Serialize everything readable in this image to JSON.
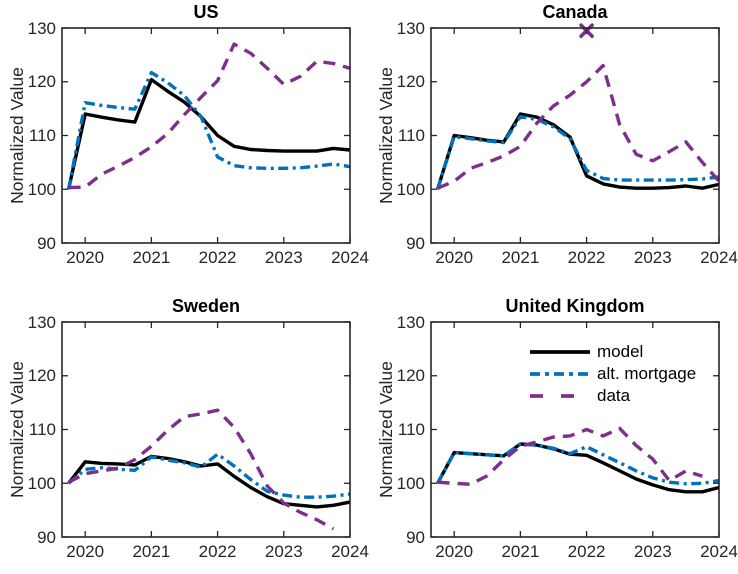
{
  "figure": {
    "background": "#ffffff",
    "axis_color": "#262626",
    "tick_label_color": "#262626",
    "title_color": "#000000"
  },
  "legend": {
    "location": "united-kingdom-subplot-top",
    "entries": [
      {
        "label": "model",
        "color": "#000000",
        "style": "solid"
      },
      {
        "label": "alt. mortgage",
        "color": "#0072BD",
        "style": "dashdot"
      },
      {
        "label": "data",
        "color": "#7E2F8E",
        "style": "dashed"
      }
    ]
  },
  "chart_data": [
    {
      "type": "line",
      "title": "US",
      "ylabel": "Normalized Value",
      "xlim": [
        2019.65,
        2024
      ],
      "ylim": [
        90,
        130
      ],
      "xticks": [
        2020,
        2021,
        2022,
        2023,
        2024
      ],
      "yticks": [
        90,
        100,
        110,
        120,
        130
      ],
      "grid": false,
      "x": [
        2019.75,
        2020,
        2020.25,
        2020.5,
        2020.75,
        2021,
        2021.25,
        2021.5,
        2021.75,
        2022,
        2022.25,
        2022.5,
        2022.75,
        2023,
        2023.25,
        2023.5,
        2023.75,
        2024
      ],
      "series": [
        {
          "name": "model",
          "color": "#000000",
          "style": "solid",
          "values": [
            100,
            114,
            113.4,
            112.9,
            112.5,
            120.4,
            118.2,
            116.2,
            113.5,
            110,
            108,
            107.4,
            107.2,
            107.1,
            107.1,
            107.1,
            107.6,
            107.3
          ]
        },
        {
          "name": "alt. mortgage",
          "color": "#0072BD",
          "style": "dashdot",
          "values": [
            100,
            116.1,
            115.6,
            115.2,
            114.9,
            121.7,
            119.8,
            117.4,
            113.5,
            106,
            104.4,
            104,
            103.9,
            103.9,
            104,
            104.3,
            104.7,
            104.2
          ]
        },
        {
          "name": "data",
          "color": "#7E2F8E",
          "style": "dashed",
          "values": [
            100.3,
            100.4,
            102.8,
            104.3,
            105.9,
            107.9,
            110.4,
            113.9,
            117.1,
            120.2,
            127,
            125.3,
            122.5,
            119.5,
            121,
            123.8,
            123.4,
            122.5
          ]
        }
      ],
      "markers": []
    },
    {
      "type": "line",
      "title": "Canada",
      "ylabel": "Normalized Value",
      "xlim": [
        2019.65,
        2024
      ],
      "ylim": [
        90,
        130
      ],
      "xticks": [
        2020,
        2021,
        2022,
        2023,
        2024
      ],
      "yticks": [
        90,
        100,
        110,
        120,
        130
      ],
      "grid": false,
      "x": [
        2019.75,
        2020,
        2020.25,
        2020.5,
        2020.75,
        2021,
        2021.25,
        2021.5,
        2021.75,
        2022,
        2022.25,
        2022.5,
        2022.75,
        2023,
        2023.25,
        2023.5,
        2023.75,
        2024
      ],
      "series": [
        {
          "name": "model",
          "color": "#000000",
          "style": "solid",
          "values": [
            100,
            110,
            109.6,
            109.1,
            108.8,
            114,
            113.4,
            112,
            109.7,
            102.5,
            101,
            100.4,
            100.2,
            100.2,
            100.3,
            100.6,
            100.2,
            100.9
          ]
        },
        {
          "name": "alt. mortgage",
          "color": "#0072BD",
          "style": "dashdot",
          "values": [
            100,
            109.8,
            109.4,
            109,
            108.7,
            113.5,
            113,
            111.6,
            109.4,
            103.5,
            102,
            101.7,
            101.7,
            101.7,
            101.7,
            101.8,
            101.9,
            102.3
          ]
        },
        {
          "name": "data",
          "color": "#7E2F8E",
          "style": "dashed",
          "values": [
            100.2,
            101.5,
            103.9,
            105,
            106.2,
            108,
            112.3,
            115.5,
            117.5,
            120,
            123,
            112,
            106.5,
            105.3,
            107,
            108.8,
            105,
            101.5
          ]
        }
      ],
      "markers": [
        {
          "series": "data",
          "x": 2022,
          "y": 129.5,
          "shape": "x",
          "color": "#7E2F8E"
        }
      ]
    },
    {
      "type": "line",
      "title": "Sweden",
      "ylabel": "Normalized Value",
      "xlim": [
        2019.65,
        2024
      ],
      "ylim": [
        90,
        130
      ],
      "xticks": [
        2020,
        2021,
        2022,
        2023,
        2024
      ],
      "yticks": [
        90,
        100,
        110,
        120,
        130
      ],
      "grid": false,
      "x": [
        2019.75,
        2020,
        2020.25,
        2020.5,
        2020.75,
        2021,
        2021.25,
        2021.5,
        2021.75,
        2022,
        2022.25,
        2022.5,
        2022.75,
        2023,
        2023.25,
        2023.5,
        2023.75,
        2024
      ],
      "series": [
        {
          "name": "model",
          "color": "#000000",
          "style": "solid",
          "values": [
            100,
            104,
            103.7,
            103.6,
            103.4,
            105,
            104.6,
            104,
            103.2,
            103.6,
            101.3,
            99.2,
            97.5,
            96.2,
            95.9,
            95.6,
            95.9,
            96.5
          ]
        },
        {
          "name": "alt. mortgage",
          "color": "#0072BD",
          "style": "dashdot",
          "values": [
            100,
            102.6,
            102.9,
            102.6,
            102.4,
            104.9,
            104.3,
            103.8,
            103,
            105.4,
            103.2,
            100.7,
            98.5,
            97.8,
            97.4,
            97.4,
            97.6,
            98
          ]
        },
        {
          "name": "data",
          "color": "#7E2F8E",
          "style": "dashed",
          "values": [
            100.2,
            101.8,
            102.3,
            102.8,
            104.4,
            106.9,
            109.9,
            112.4,
            112.9,
            113.6,
            110.4,
            105.5,
            99.5,
            96.3,
            94.6,
            93.2,
            91.5,
            null
          ]
        }
      ],
      "markers": []
    },
    {
      "type": "line",
      "title": "United Kingdom",
      "ylabel": "Normalized Value",
      "xlim": [
        2019.65,
        2024
      ],
      "ylim": [
        90,
        130
      ],
      "xticks": [
        2020,
        2021,
        2022,
        2023,
        2024
      ],
      "yticks": [
        90,
        100,
        110,
        120,
        130
      ],
      "grid": false,
      "x": [
        2019.75,
        2020,
        2020.25,
        2020.5,
        2020.75,
        2021,
        2021.25,
        2021.5,
        2021.75,
        2022,
        2022.25,
        2022.5,
        2022.75,
        2023,
        2023.25,
        2023.5,
        2023.75,
        2024
      ],
      "series": [
        {
          "name": "model",
          "color": "#000000",
          "style": "solid",
          "values": [
            100,
            105.7,
            105.5,
            105.3,
            105.1,
            107.3,
            107.1,
            106.4,
            105.4,
            105.2,
            103.8,
            102.3,
            100.8,
            99.7,
            98.8,
            98.4,
            98.4,
            99.2
          ]
        },
        {
          "name": "alt. mortgage",
          "color": "#0072BD",
          "style": "dashdot",
          "values": [
            100,
            105.7,
            105.5,
            105.3,
            105.1,
            107.3,
            107.1,
            106.5,
            105.5,
            106.8,
            105.3,
            103.8,
            102.3,
            101,
            100.2,
            99.9,
            100,
            100.5
          ]
        },
        {
          "name": "data",
          "color": "#7E2F8E",
          "style": "dashed",
          "values": [
            100.2,
            100,
            99.8,
            101.4,
            104.4,
            106.9,
            107.7,
            108.6,
            108.8,
            110,
            108.8,
            110.2,
            107,
            104.5,
            100.5,
            102.3,
            101.3,
            null
          ]
        }
      ],
      "markers": []
    }
  ]
}
